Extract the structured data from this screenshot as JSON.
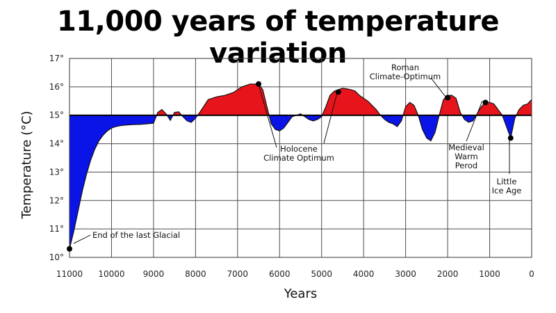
{
  "chart_data": {
    "type": "area",
    "title": "11,000 years of temperature variation",
    "xlabel": "Years",
    "ylabel": "Temperature (°C)",
    "x_reversed": true,
    "xlim": [
      11000,
      0
    ],
    "ylim": [
      10,
      17
    ],
    "baseline": 15,
    "grid": true,
    "x_ticks": [
      11000,
      10000,
      9000,
      8000,
      7000,
      6000,
      5000,
      4000,
      3000,
      2000,
      1000,
      0
    ],
    "y_ticks": [
      10,
      11,
      12,
      13,
      14,
      15,
      16,
      17
    ],
    "y_tick_labels": [
      "10°",
      "11°",
      "12°",
      "13°",
      "14°",
      "15°",
      "16°",
      "17°"
    ],
    "colors": {
      "above": "#e8141c",
      "below": "#0a14e6"
    },
    "series": [
      {
        "x": [
          11000,
          10900,
          10800,
          10700,
          10600,
          10500,
          10400,
          10300,
          10200,
          10100,
          10000,
          9900,
          9800,
          9700,
          9500,
          9300,
          9000,
          8900,
          8800,
          8700,
          8600,
          8500,
          8400,
          8300,
          8200,
          8100,
          8000,
          7900,
          7700,
          7500,
          7300,
          7100,
          6900,
          6700,
          6500,
          6400,
          6300,
          6200,
          6100,
          6000,
          5900,
          5800,
          5700,
          5600,
          5500,
          5400,
          5300,
          5200,
          5100,
          5000,
          4900,
          4800,
          4700,
          4600,
          4500,
          4400,
          4300,
          4200,
          4100,
          4000,
          3900,
          3800,
          3700,
          3600,
          3500,
          3400,
          3300,
          3200,
          3100,
          3000,
          2900,
          2800,
          2700,
          2600,
          2500,
          2400,
          2300,
          2200,
          2100,
          2000,
          1900,
          1800,
          1700,
          1600,
          1500,
          1400,
          1300,
          1200,
          1100,
          1000,
          900,
          800,
          700,
          600,
          500,
          400,
          300,
          200,
          100,
          0
        ],
        "y": [
          10.3,
          10.9,
          11.6,
          12.3,
          12.9,
          13.4,
          13.8,
          14.1,
          14.3,
          14.45,
          14.55,
          14.6,
          14.63,
          14.65,
          14.67,
          14.68,
          14.72,
          15.1,
          15.2,
          15.05,
          14.82,
          15.1,
          15.12,
          14.95,
          14.8,
          14.75,
          14.9,
          15.1,
          15.55,
          15.65,
          15.7,
          15.8,
          16.0,
          16.1,
          16.1,
          15.9,
          15.3,
          14.7,
          14.5,
          14.45,
          14.55,
          14.75,
          14.95,
          15.0,
          15.05,
          14.95,
          14.85,
          14.8,
          14.85,
          14.95,
          15.3,
          15.7,
          15.85,
          15.9,
          15.95,
          15.93,
          15.9,
          15.85,
          15.7,
          15.6,
          15.5,
          15.35,
          15.2,
          15.0,
          14.85,
          14.75,
          14.7,
          14.6,
          14.8,
          15.3,
          15.45,
          15.35,
          15.0,
          14.5,
          14.2,
          14.1,
          14.4,
          15.0,
          15.55,
          15.7,
          15.7,
          15.6,
          15.1,
          14.85,
          14.75,
          14.8,
          15.05,
          15.3,
          15.45,
          15.45,
          15.4,
          15.2,
          15.0,
          14.6,
          14.2,
          14.9,
          15.2,
          15.35,
          15.4,
          15.55
        ]
      }
    ],
    "annotations": [
      {
        "label": "End of the last Glacial",
        "x": 11000,
        "y": 10.3,
        "lines": [
          "End of the last Glacial"
        ]
      },
      {
        "label": "Holocene Climate Optimum",
        "x": 6500,
        "y": 16.1,
        "lines": [
          "Holocene",
          "Climate Optimum"
        ]
      },
      {
        "label": "Holocene Climate Optimum",
        "x": 4600,
        "y": 15.82,
        "lines": []
      },
      {
        "label": "Roman Climate-Optimum",
        "x": 2000,
        "y": 15.62,
        "lines": [
          "Roman",
          "Climate-Optimum"
        ]
      },
      {
        "label": "Medieval Warm Perod",
        "x": 1100,
        "y": 15.45,
        "lines": [
          "Medieval",
          "Warm",
          "Perod"
        ]
      },
      {
        "label": "Little Ice Age",
        "x": 500,
        "y": 14.2,
        "lines": [
          "Little",
          "Ice Age"
        ]
      }
    ]
  }
}
